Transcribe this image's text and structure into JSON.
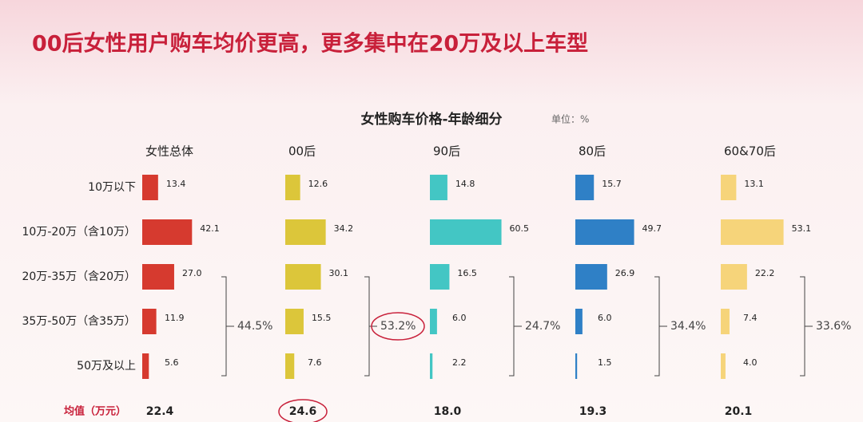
{
  "chart_data": {
    "type": "bar",
    "title": "00后女性用户购车均价更高，更多集中在20万及以上车型",
    "subtitle": "女性购车价格-年龄细分",
    "unit": "单位：%",
    "categories": [
      "10万以下",
      "10万-20万（含10万）",
      "20万-35万（含20万）",
      "35万-50万（含35万）",
      "50万及以上"
    ],
    "mean_label": "均值（万元）",
    "series": [
      {
        "name": "女性总体",
        "color": "#d63a2f",
        "values": [
          13.4,
          42.1,
          27.0,
          11.9,
          5.6
        ],
        "value_labels": [
          "13.4",
          "42.1",
          "27.0",
          "11.9",
          "5.6"
        ],
        "bracket_label": "44.5%",
        "mean": "22.4",
        "highlighted": false
      },
      {
        "name": "00后",
        "color": "#dcc63a",
        "values": [
          12.6,
          34.2,
          30.1,
          15.5,
          7.6
        ],
        "value_labels": [
          "12.6",
          "34.2",
          "30.1",
          "15.5",
          "7.6"
        ],
        "bracket_label": "53.2%",
        "mean": "24.6",
        "highlighted": true
      },
      {
        "name": "90后",
        "color": "#43c6c4",
        "values": [
          14.8,
          60.5,
          16.5,
          6.0,
          2.2
        ],
        "value_labels": [
          "14.8",
          "60.5",
          "16.5",
          "6.0",
          "2.2"
        ],
        "bracket_label": "24.7%",
        "mean": "18.0",
        "highlighted": false
      },
      {
        "name": "80后",
        "color": "#2f80c6",
        "values": [
          15.7,
          49.7,
          26.9,
          6.0,
          1.5
        ],
        "value_labels": [
          "15.7",
          "49.7",
          "26.9",
          "6.0",
          "1.5"
        ],
        "bracket_label": "34.4%",
        "mean": "19.3",
        "highlighted": false
      },
      {
        "name": "60&70后",
        "color": "#f6d47a",
        "values": [
          13.1,
          53.1,
          22.2,
          7.4,
          4.0
        ],
        "value_labels": [
          "13.1",
          "53.1",
          "22.2",
          "7.4",
          "4.0"
        ],
        "bracket_label": "33.6%",
        "mean": "20.1",
        "highlighted": false
      }
    ]
  }
}
